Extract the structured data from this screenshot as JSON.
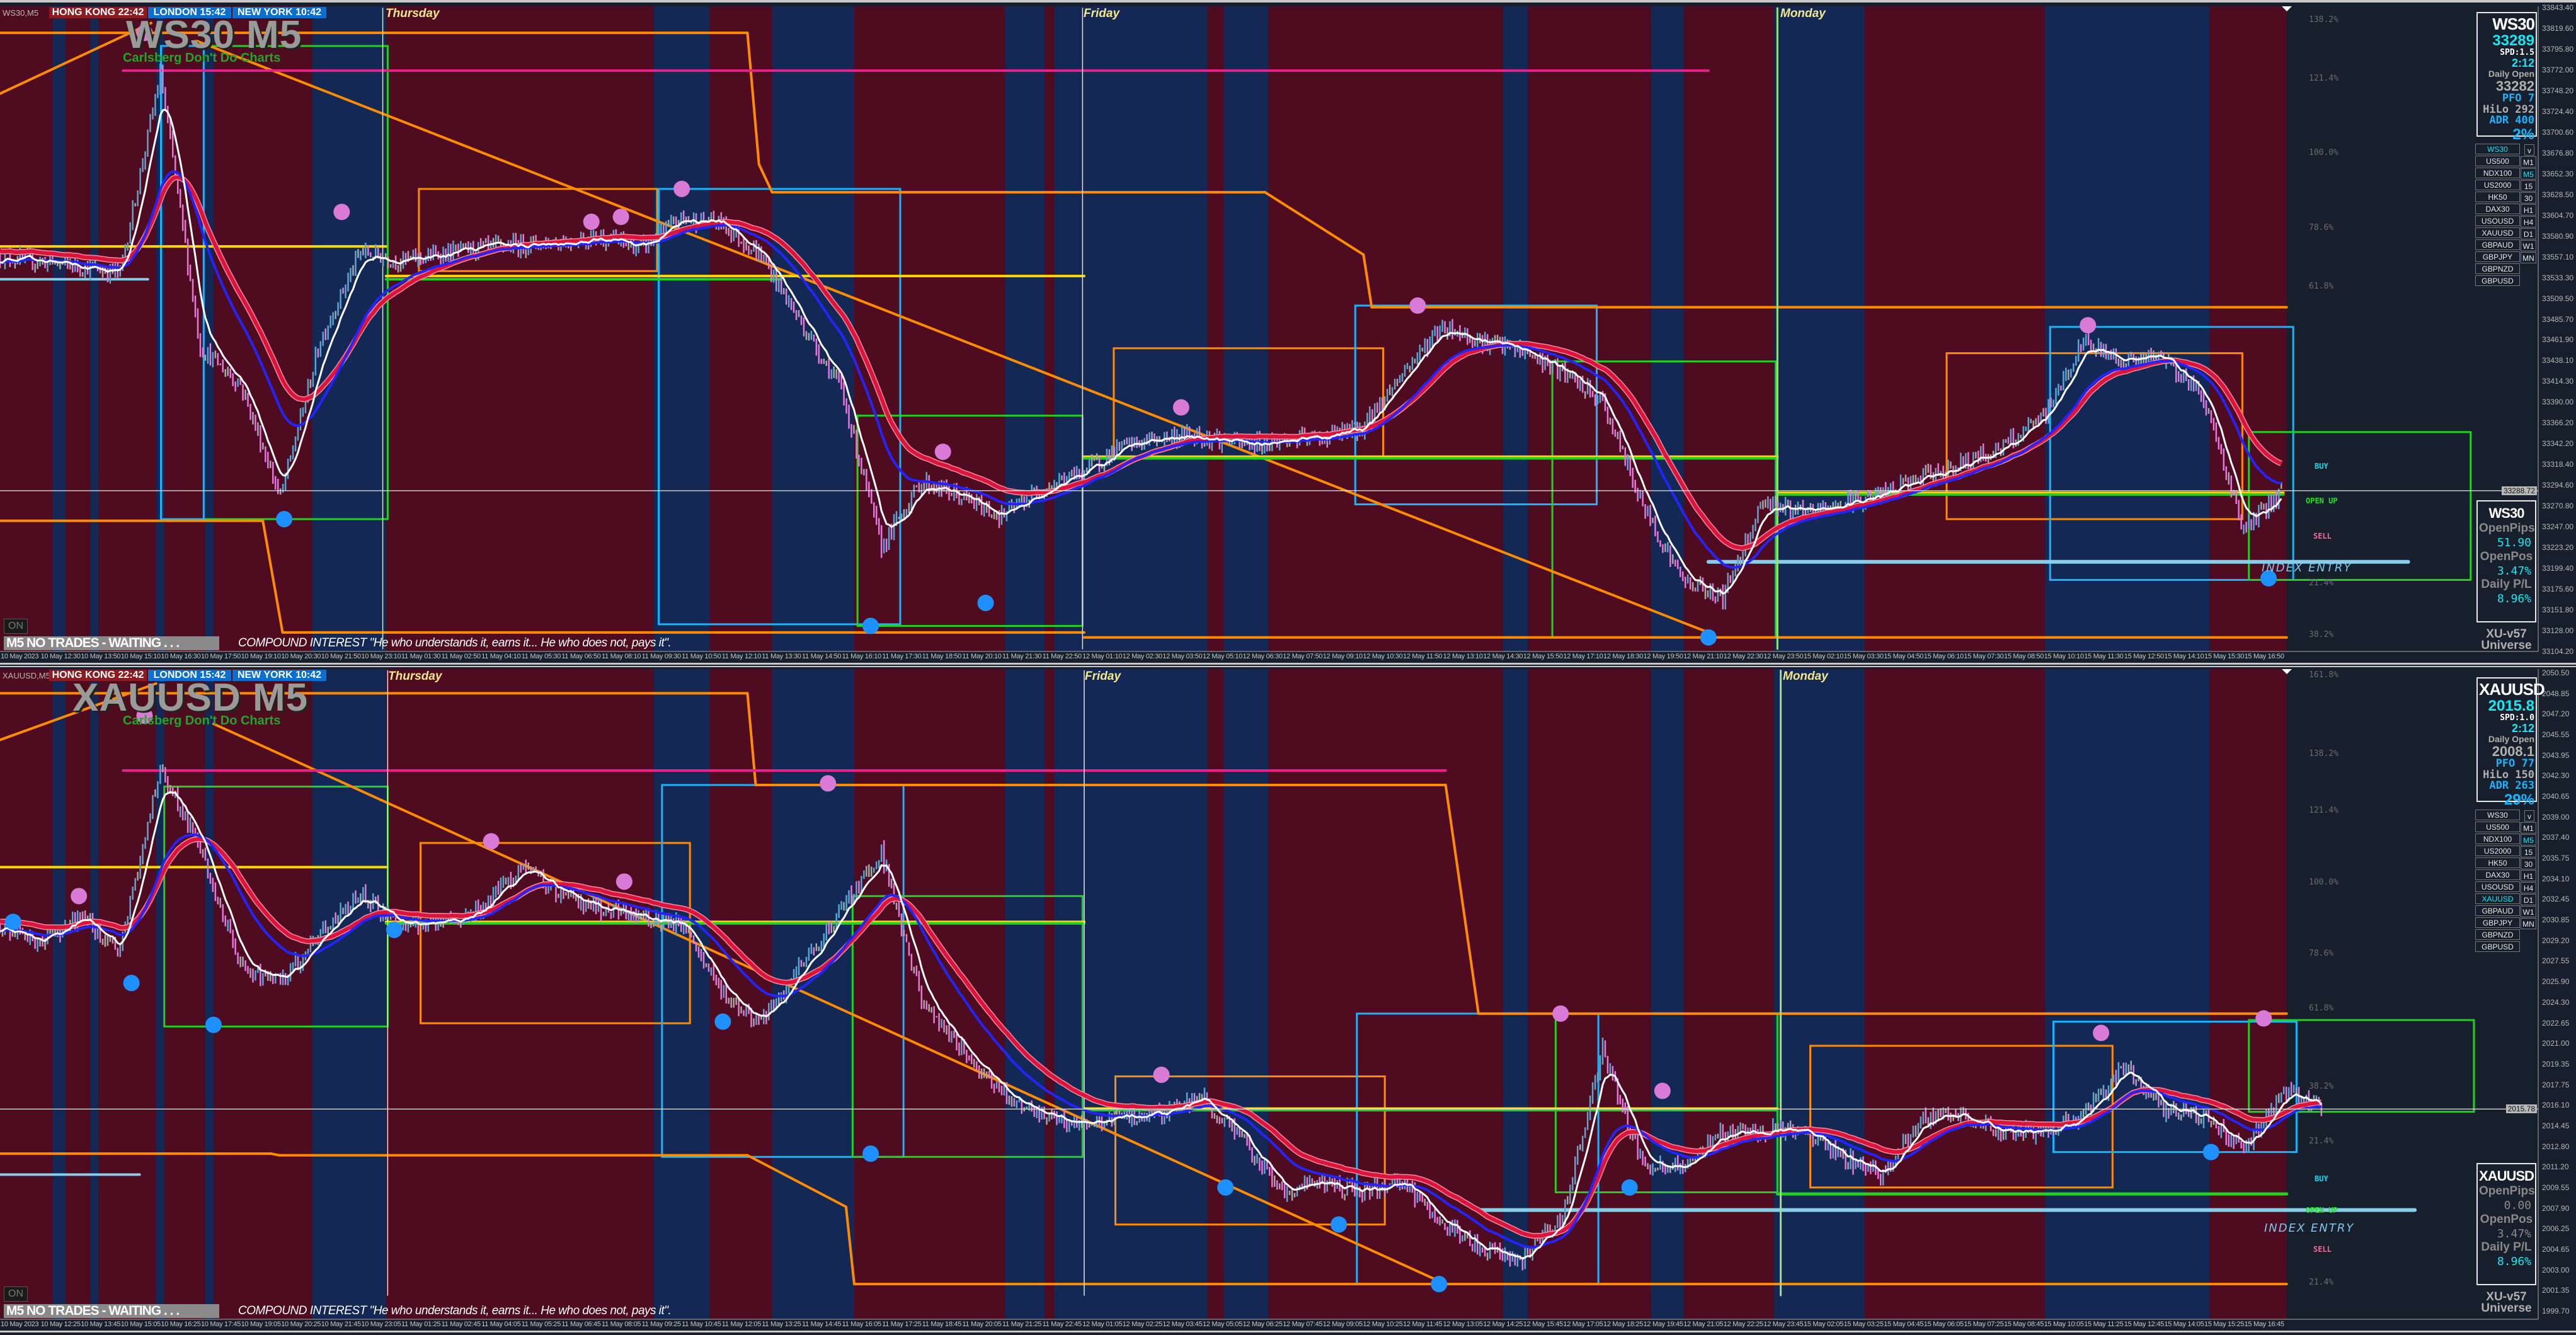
{
  "colors": {
    "maroon": "#4f0b20",
    "navy": "#142856",
    "bg": "#161f2b",
    "orange": "#ff8c00",
    "magenta": "#e8208c",
    "yellow": "#ffd700",
    "green": "#22d022",
    "cyan_box": "#19b4ff",
    "light_blue": "#87ceeb",
    "ma_red": "#dc143c",
    "ma_white": "#ffffff",
    "ma_blue": "#2424ff",
    "bull": "#5aa6d2",
    "bear": "#e27ada",
    "neutral": "#a8a8a8",
    "pink_dot": "#d97bd6",
    "blue_dot": "#1e90ff",
    "accent_cyan": "#19e6f0"
  },
  "sessions": [
    {
      "label": "HONG KONG 22:42",
      "color": "#8b1c22"
    },
    {
      "label": "LONDON  15:42",
      "color": "#0a6fcf"
    },
    {
      "label": "NEW YORK  10:42",
      "color": "#0a6fcf"
    }
  ],
  "day_labels": [
    "Thursday",
    "Friday",
    "Monday"
  ],
  "signals": {
    "buy": "BUY",
    "open_up": "OPEN UP",
    "sell": "SELL",
    "index_entry": "INDEX ENTRY"
  },
  "on_button": "ON",
  "status": "M5  NO TRADES - WAITING . . .",
  "quote": "COMPOUND INTEREST \"He who understands it, earns it... He who does not, pays it\".",
  "brand": {
    "line1": "XU-v57",
    "line2": "Universe"
  },
  "symbol_list": [
    "WS30",
    "US500",
    "NDX100",
    "US2000",
    "HK50",
    "DAX30",
    "USOUSD",
    "XAUUSD",
    "GBPAUD",
    "GBPJPY",
    "GBPNZD",
    "GBPUSD"
  ],
  "timeframes": [
    "v",
    "M1",
    "M5",
    "15",
    "30",
    "H1",
    "H4",
    "D1",
    "W1",
    "MN"
  ],
  "active_timeframe": "M5",
  "panels": [
    {
      "symbol_tag": "WS30,M5",
      "watermark": "WS30 M5",
      "subtitle": "Carlsberg Don't Do Charts",
      "active_symbol": "WS30",
      "fib_levels": [
        "138.2%",
        "121.4%",
        "100.0%",
        "78.6%",
        "61.8%",
        "21.4%",
        "38.2%"
      ],
      "price_axis": [
        "33843.40",
        "33819.60",
        "33795.80",
        "33772.00",
        "33748.20",
        "33724.40",
        "33700.60",
        "33676.80",
        "33652.30",
        "33628.50",
        "33604.70",
        "33580.90",
        "33557.10",
        "33533.30",
        "33509.50",
        "33485.70",
        "33461.90",
        "33438.10",
        "33414.30",
        "33390.00",
        "33366.20",
        "33342.20",
        "33318.40",
        "33294.60",
        "33270.80",
        "33247.00",
        "33223.20",
        "33199.40",
        "33175.60",
        "33151.80",
        "33128.00",
        "33104.20"
      ],
      "price_range": [
        33104.2,
        33843.4
      ],
      "current_price": "33288.72",
      "time_axis": [
        "10 May 2023",
        "10 May 12:30",
        "10 May 13:50",
        "10 May 15:10",
        "10 May 16:30",
        "10 May 17:50",
        "10 May 19:10",
        "10 May 20:30",
        "10 May 21:50",
        "10 May 23:10",
        "11 May 01:30",
        "11 May 02:50",
        "11 May 04:10",
        "11 May 05:30",
        "11 May 06:50",
        "11 May 08:10",
        "11 May 09:30",
        "11 May 10:50",
        "11 May 12:10",
        "11 May 13:30",
        "11 May 14:50",
        "11 May 16:10",
        "11 May 17:30",
        "11 May 18:50",
        "11 May 20:10",
        "11 May 21:30",
        "11 May 22:50",
        "12 May 01:10",
        "12 May 02:30",
        "12 May 03:50",
        "12 May 05:10",
        "12 May 06:30",
        "12 May 07:50",
        "12 May 09:10",
        "12 May 10:30",
        "12 May 11:50",
        "12 May 13:10",
        "12 May 14:30",
        "12 May 15:50",
        "12 May 17:10",
        "12 May 18:30",
        "12 May 19:50",
        "12 May 21:10",
        "12 May 22:30",
        "12 May 23:50",
        "15 May 02:10",
        "15 May 03:30",
        "15 May 04:50",
        "15 May 06:10",
        "15 May 07:30",
        "15 May 08:50",
        "15 May 10:10",
        "15 May 11:30",
        "15 May 12:50",
        "15 May 14:10",
        "15 May 15:30",
        "15 May 16:50"
      ],
      "closes": [
        33558,
        33552,
        33546,
        33539,
        33767,
        33453,
        33411,
        33281,
        33462,
        33563,
        33552,
        33560,
        33567,
        33571,
        33575,
        33580,
        33567,
        33601,
        33596,
        33558,
        33481,
        33405,
        33224,
        33300,
        33281,
        33259,
        33291,
        33310,
        33339,
        33350,
        33352,
        33342,
        33346,
        33350,
        33361,
        33424,
        33478,
        33460,
        33449,
        33424,
        33390,
        33272,
        33186,
        33167,
        33278,
        33262,
        33274,
        33285,
        33304,
        33320,
        33339,
        33373,
        33459,
        33438,
        33442,
        33396,
        33243,
        33289
      ],
      "info": {
        "symbol": "WS30",
        "price": "33289",
        "spread": "SPD:1.5",
        "timer": "2:12",
        "daily_open_label": "Daily Open",
        "daily_open": "33282",
        "pfo": "PFO    7",
        "hilo": "HiLo 292",
        "adr": "ADR 400",
        "adr_pct": "2%"
      },
      "pnl": {
        "symbol": "WS30",
        "open_pips_label": "OpenPips",
        "open_pips": "51.90",
        "open_pos_label": "OpenPos",
        "open_pos": "3.47%",
        "daily_pl_label": "Daily P/L",
        "daily_pl": "8.96%",
        "open_pips_active": true
      }
    },
    {
      "symbol_tag": "XAUUSD,M5",
      "watermark": "XAUUSD M5",
      "subtitle": "Carlsberg Don't Do Charts",
      "active_symbol": "XAUUSD",
      "fib_levels": [
        "161.8%",
        "138.2%",
        "121.4%",
        "100.0%",
        "78.6%",
        "61.8%",
        "38.2%",
        "21.4%",
        "21.4%"
      ],
      "price_axis": [
        "2050.50",
        "2048.85",
        "2047.20",
        "2045.55",
        "2043.95",
        "2042.30",
        "2040.65",
        "2039.00",
        "2037.40",
        "2035.75",
        "2034.10",
        "2032.45",
        "2030.85",
        "2029.20",
        "2027.55",
        "2025.90",
        "2024.30",
        "2022.65",
        "2021.00",
        "2019.35",
        "2017.75",
        "2016.10",
        "2014.45",
        "2012.80",
        "2011.20",
        "2009.55",
        "2007.90",
        "2006.25",
        "2004.65",
        "2003.00",
        "2001.35",
        "1999.70"
      ],
      "price_range": [
        1999.7,
        2050.5
      ],
      "current_price": "2015.78",
      "time_axis": [
        "10 May 2023",
        "10 May 12:25",
        "10 May 13:45",
        "10 May 15:05",
        "10 May 16:25",
        "10 May 17:45",
        "10 May 19:05",
        "10 May 20:25",
        "10 May 21:45",
        "10 May 23:05",
        "11 May 01:25",
        "11 May 02:45",
        "11 May 04:05",
        "11 May 05:25",
        "11 May 06:45",
        "11 May 08:05",
        "11 May 09:25",
        "11 May 10:45",
        "11 May 12:05",
        "11 May 13:25",
        "11 May 14:45",
        "11 May 16:05",
        "11 May 17:25",
        "11 May 18:45",
        "11 May 20:05",
        "11 May 21:25",
        "11 May 22:45",
        "12 May 01:05",
        "12 May 02:25",
        "12 May 03:45",
        "12 May 05:05",
        "12 May 06:25",
        "12 May 07:45",
        "12 May 09:05",
        "12 May 10:25",
        "12 May 11:45",
        "12 May 13:05",
        "12 May 14:25",
        "12 May 15:45",
        "12 May 17:05",
        "12 May 18:25",
        "12 May 19:45",
        "12 May 21:05",
        "12 May 22:25",
        "12 May 23:45",
        "15 May 02:05",
        "15 May 03:25",
        "15 May 04:45",
        "15 May 06:05",
        "15 May 07:25",
        "15 May 08:45",
        "15 May 10:05",
        "15 May 11:25",
        "15 May 12:45",
        "15 May 14:05",
        "15 May 15:25",
        "15 May 16:45"
      ],
      "closes": [
        2030.4,
        2029.1,
        2031.1,
        2028.4,
        2043.0,
        2036.3,
        2027.1,
        2025.8,
        2029.7,
        2033.0,
        2030.4,
        2030.4,
        2031.7,
        2035.0,
        2033.0,
        2031.7,
        2031.1,
        2030.4,
        2025.1,
        2022.5,
        2027.1,
        2031.7,
        2036.3,
        2024.4,
        2020.5,
        2017.2,
        2015.2,
        2014.5,
        2015.2,
        2015.4,
        2016.8,
        2013.2,
        2009.2,
        2009.9,
        2009.2,
        2009.9,
        2006.6,
        2004.6,
        2003.9,
        2007.2,
        2020.5,
        2011.2,
        2011.2,
        2013.9,
        2014.1,
        2013.9,
        2011.9,
        2010.5,
        2015.2,
        2015.2,
        2013.9,
        2013.9,
        2015.2,
        2019.1,
        2015.8,
        2015.2,
        2012.5,
        2017.2,
        2015.8
      ],
      "info": {
        "symbol": "XAUUSD",
        "price": "2015.8",
        "spread": "SPD:1.0",
        "timer": "2:12",
        "daily_open_label": "Daily Open",
        "daily_open": "2008.1",
        "pfo": "PFO   77",
        "hilo": "HiLo 150",
        "adr": "ADR 263",
        "adr_pct": "29%"
      },
      "pnl": {
        "symbol": "XAUUSD",
        "open_pips_label": "OpenPips",
        "open_pips": "0.00",
        "open_pos_label": "OpenPos",
        "open_pos": "3.47%",
        "daily_pl_label": "Daily P/L",
        "daily_pl": "8.96%",
        "open_pips_active": false
      }
    }
  ]
}
